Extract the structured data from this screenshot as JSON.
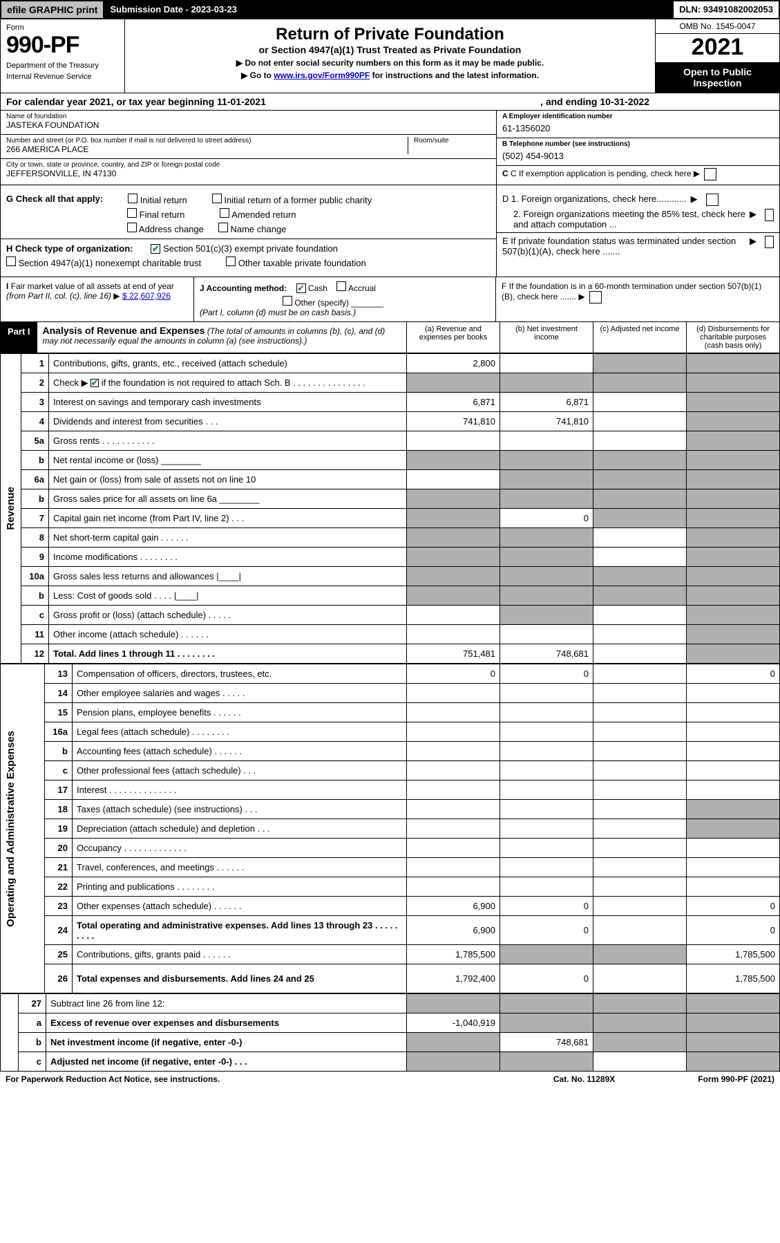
{
  "topbar": {
    "efile": "efile GRAPHIC print",
    "submission": "Submission Date - 2023-03-23",
    "dln": "DLN: 93491082002053"
  },
  "header": {
    "form_word": "Form",
    "form_num": "990-PF",
    "dept": "Department of the Treasury",
    "irs": "Internal Revenue Service",
    "title": "Return of Private Foundation",
    "subtitle": "or Section 4947(a)(1) Trust Treated as Private Foundation",
    "note1": "▶ Do not enter social security numbers on this form as it may be made public.",
    "note2_pre": "▶ Go to ",
    "note2_link": "www.irs.gov/Form990PF",
    "note2_post": " for instructions and the latest information.",
    "omb": "OMB No. 1545-0047",
    "year": "2021",
    "open": "Open to Public Inspection"
  },
  "calendar": {
    "text": "For calendar year 2021, or tax year beginning 11-01-2021",
    "ending": ", and ending 10-31-2022"
  },
  "id": {
    "name_lbl": "Name of foundation",
    "name": "JASTEKA FOUNDATION",
    "addr_lbl": "Number and street (or P.O. box number if mail is not delivered to street address)",
    "addr": "266 AMERICA PLACE",
    "room_lbl": "Room/suite",
    "city_lbl": "City or town, state or province, country, and ZIP or foreign postal code",
    "city": "JEFFERSONVILLE, IN  47130",
    "ein_lbl": "A Employer identification number",
    "ein": "61-1356020",
    "tel_lbl": "B Telephone number (see instructions)",
    "tel": "(502) 454-9013",
    "c_lbl": "C If exemption application is pending, check here"
  },
  "g": {
    "lbl": "G Check all that apply:",
    "initial": "Initial return",
    "initial_former": "Initial return of a former public charity",
    "final": "Final return",
    "amended": "Amended return",
    "address": "Address change",
    "name_change": "Name change"
  },
  "h": {
    "lbl": "H Check type of organization:",
    "opt1": "Section 501(c)(3) exempt private foundation",
    "opt2": "Section 4947(a)(1) nonexempt charitable trust",
    "opt3": "Other taxable private foundation"
  },
  "d": {
    "d1": "D 1. Foreign organizations, check here............",
    "d2": "2. Foreign organizations meeting the 85% test, check here and attach computation ...",
    "e": "E  If private foundation status was terminated under section 507(b)(1)(A), check here .......",
    "f": "F  If the foundation is in a 60-month termination under section 507(b)(1)(B), check here ......."
  },
  "i": {
    "lbl": "I Fair market value of all assets at end of year (from Part II, col. (c), line 16) ▶",
    "val": "$  22,607,926"
  },
  "j": {
    "lbl": "J Accounting method:",
    "cash": "Cash",
    "accrual": "Accrual",
    "other": "Other (specify)",
    "note": "(Part I, column (d) must be on cash basis.)"
  },
  "part1": {
    "label": "Part I",
    "title": "Analysis of Revenue and Expenses",
    "note": "(The total of amounts in columns (b), (c), and (d) may not necessarily equal the amounts in column (a) (see instructions).)",
    "col_a": "(a)   Revenue and expenses per books",
    "col_b": "(b)   Net investment income",
    "col_c": "(c)   Adjusted net income",
    "col_d": "(d)   Disbursements for charitable purposes (cash basis only)"
  },
  "side_labels": {
    "rev": "Revenue",
    "exp": "Operating and Administrative Expenses"
  },
  "rows": [
    {
      "n": "1",
      "label": "Contributions, gifts, grants, etc., received (attach schedule)",
      "a": "2,800",
      "b": "",
      "c_shade": true,
      "d_shade": true
    },
    {
      "n": "2",
      "label": "Check ▶ [✔] if the foundation is not required to attach Sch. B   .   .   .   .   .   .   .   .   .   .   .   .   .   .   .",
      "a": "",
      "b": "",
      "c_shade": true,
      "d_shade": true,
      "a_shade": true,
      "b_shade": true,
      "has_check": true
    },
    {
      "n": "3",
      "label": "Interest on savings and temporary cash investments",
      "a": "6,871",
      "b": "6,871",
      "c": "",
      "d_shade": true
    },
    {
      "n": "4",
      "label": "Dividends and interest from securities   .   .   .",
      "a": "741,810",
      "b": "741,810",
      "c": "",
      "d_shade": true
    },
    {
      "n": "5a",
      "label": "Gross rents   .   .   .   .   .   .   .   .   .   .   .",
      "a": "",
      "b": "",
      "c": "",
      "d_shade": true
    },
    {
      "n": "b",
      "label": "Net rental income or (loss)  ________",
      "a_shade": true,
      "b_shade": true,
      "c_shade": true,
      "d_shade": true
    },
    {
      "n": "6a",
      "label": "Net gain or (loss) from sale of assets not on line 10",
      "a": "",
      "b_shade": true,
      "c_shade": true,
      "d_shade": true
    },
    {
      "n": "b",
      "label": "Gross sales price for all assets on line 6a ________",
      "a_shade": true,
      "b_shade": true,
      "c_shade": true,
      "d_shade": true
    },
    {
      "n": "7",
      "label": "Capital gain net income (from Part IV, line 2)   .   .   .",
      "a_shade": true,
      "b": "0",
      "c_shade": true,
      "d_shade": true
    },
    {
      "n": "8",
      "label": "Net short-term capital gain   .   .   .   .   .   .",
      "a_shade": true,
      "b_shade": true,
      "c": "",
      "d_shade": true
    },
    {
      "n": "9",
      "label": "Income modifications   .   .   .   .   .   .   .   .",
      "a_shade": true,
      "b_shade": true,
      "c": "",
      "d_shade": true
    },
    {
      "n": "10a",
      "label": "Gross sales less returns and allowances  |____|",
      "a_shade": true,
      "b_shade": true,
      "c_shade": true,
      "d_shade": true
    },
    {
      "n": "b",
      "label": "Less: Cost of goods sold   .   .   .   .  |____|",
      "a_shade": true,
      "b_shade": true,
      "c_shade": true,
      "d_shade": true
    },
    {
      "n": "c",
      "label": "Gross profit or (loss) (attach schedule)   .   .   .   .   .",
      "a": "",
      "b_shade": true,
      "c": "",
      "d_shade": true
    },
    {
      "n": "11",
      "label": "Other income (attach schedule)   .   .   .   .   .   .",
      "a": "",
      "b": "",
      "c": "",
      "d_shade": true
    },
    {
      "n": "12",
      "label": "Total. Add lines 1 through 11   .   .   .   .   .   .   .   .",
      "bold": true,
      "a": "751,481",
      "b": "748,681",
      "c": "",
      "d_shade": true
    }
  ],
  "exp_rows": [
    {
      "n": "13",
      "label": "Compensation of officers, directors, trustees, etc.",
      "a": "0",
      "b": "0",
      "c": "",
      "d": "0"
    },
    {
      "n": "14",
      "label": "Other employee salaries and wages   .   .   .   .   .",
      "a": "",
      "b": "",
      "c": "",
      "d": ""
    },
    {
      "n": "15",
      "label": "Pension plans, employee benefits   .   .   .   .   .   .",
      "a": "",
      "b": "",
      "c": "",
      "d": ""
    },
    {
      "n": "16a",
      "label": "Legal fees (attach schedule)   .   .   .   .   .   .   .   .",
      "a": "",
      "b": "",
      "c": "",
      "d": ""
    },
    {
      "n": "b",
      "label": "Accounting fees (attach schedule)   .   .   .   .   .   .",
      "a": "",
      "b": "",
      "c": "",
      "d": ""
    },
    {
      "n": "c",
      "label": "Other professional fees (attach schedule)   .   .   .",
      "a": "",
      "b": "",
      "c": "",
      "d": ""
    },
    {
      "n": "17",
      "label": "Interest   .   .   .   .   .   .   .   .   .   .   .   .   .   .",
      "a": "",
      "b": "",
      "c": "",
      "d": ""
    },
    {
      "n": "18",
      "label": "Taxes (attach schedule) (see instructions)   .   .   .",
      "a": "",
      "b": "",
      "c": "",
      "d_shade": true
    },
    {
      "n": "19",
      "label": "Depreciation (attach schedule) and depletion   .   .   .",
      "a": "",
      "b": "",
      "c": "",
      "d_shade": true
    },
    {
      "n": "20",
      "label": "Occupancy   .   .   .   .   .   .   .   .   .   .   .   .   .",
      "a": "",
      "b": "",
      "c": "",
      "d": ""
    },
    {
      "n": "21",
      "label": "Travel, conferences, and meetings   .   .   .   .   .   .",
      "a": "",
      "b": "",
      "c": "",
      "d": ""
    },
    {
      "n": "22",
      "label": "Printing and publications   .   .   .   .   .   .   .   .",
      "a": "",
      "b": "",
      "c": "",
      "d": ""
    },
    {
      "n": "23",
      "label": "Other expenses (attach schedule)   .   .   .   .   .   .",
      "a": "6,900",
      "b": "0",
      "c": "",
      "d": "0"
    },
    {
      "n": "24",
      "label": "Total operating and administrative expenses. Add lines 13 through 23   .   .   .   .   .   .   .   .   .",
      "bold": true,
      "a": "6,900",
      "b": "0",
      "c": "",
      "d": "0",
      "tall": true
    },
    {
      "n": "25",
      "label": "Contributions, gifts, grants paid   .   .   .   .   .   .",
      "a": "1,785,500",
      "b_shade": true,
      "c_shade": true,
      "d": "1,785,500"
    },
    {
      "n": "26",
      "label": "Total expenses and disbursements. Add lines 24 and 25",
      "bold": true,
      "a": "1,792,400",
      "b": "0",
      "c": "",
      "d": "1,785,500",
      "tall": true
    }
  ],
  "final_rows": [
    {
      "n": "27",
      "label": "Subtract line 26 from line 12:",
      "a_shade": true,
      "b_shade": true,
      "c_shade": true,
      "d_shade": true
    },
    {
      "n": "a",
      "label": "Excess of revenue over expenses and disbursements",
      "bold": true,
      "a": "-1,040,919",
      "b_shade": true,
      "c_shade": true,
      "d_shade": true
    },
    {
      "n": "b",
      "label": "Net investment income (if negative, enter -0-)",
      "bold": true,
      "a_shade": true,
      "b": "748,681",
      "c_shade": true,
      "d_shade": true
    },
    {
      "n": "c",
      "label": "Adjusted net income (if negative, enter -0-)   .   .   .",
      "bold": true,
      "a_shade": true,
      "b_shade": true,
      "c": "",
      "d_shade": true
    }
  ],
  "footer": {
    "l": "For Paperwork Reduction Act Notice, see instructions.",
    "c": "Cat. No. 11289X",
    "r": "Form 990-PF (2021)"
  },
  "colors": {
    "shade": "#b0b0b0",
    "link": "#0000cc",
    "check": "#2e8b57"
  }
}
